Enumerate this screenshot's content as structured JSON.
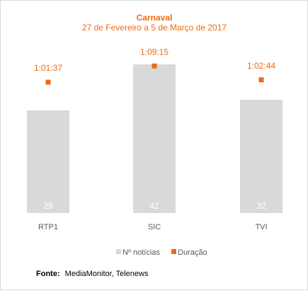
{
  "chart_data": {
    "type": "bar",
    "title": "Carnaval",
    "subtitle": "27 de Fevereiro a 5 de Março de 2017",
    "categories": [
      "RTP1",
      "SIC",
      "TVI"
    ],
    "series": [
      {
        "name": "Nº notícias",
        "type": "bar",
        "values": [
          29,
          42,
          32
        ],
        "color": "#d9d9d9"
      },
      {
        "name": "Duração",
        "type": "scatter",
        "values": [
          "1:01:37",
          "1:09:15",
          "1:02:44"
        ],
        "seconds": [
          3697,
          4155,
          3764
        ],
        "color": "#ee6a10"
      }
    ],
    "ylim": [
      0,
      50
    ],
    "duration_ylim_seconds": [
      0,
      5000
    ],
    "grid": false,
    "legend": "bottom-right",
    "source_label": "Fonte:",
    "source_text": "MediaMonitor, Telenews",
    "text_color": "#595959",
    "title_color": "#ee6a10"
  }
}
